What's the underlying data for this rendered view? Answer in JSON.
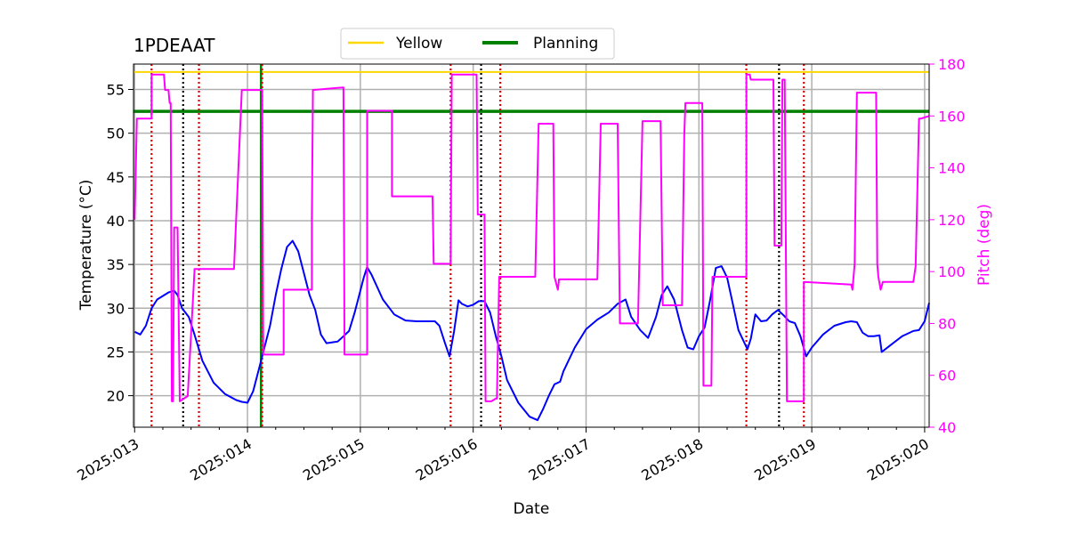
{
  "chart_data": {
    "type": "line",
    "title": "1PDEAAT",
    "xlabel": "Date",
    "ylabel_left": "Temperature ($^\\circ$C)",
    "ylabel_left_display": "Temperature (°C)",
    "ylabel_right": "Pitch (deg)",
    "xlim": [
      12.99,
      20.04
    ],
    "ylim_left": [
      16.4,
      57.9
    ],
    "ylim_right": [
      40,
      180
    ],
    "x_ticks": [
      {
        "value": 13,
        "label": "2025:013"
      },
      {
        "value": 14,
        "label": "2025:014"
      },
      {
        "value": 15,
        "label": "2025:015"
      },
      {
        "value": 16,
        "label": "2025:016"
      },
      {
        "value": 17,
        "label": "2025:017"
      },
      {
        "value": 18,
        "label": "2025:018"
      },
      {
        "value": 19,
        "label": "2025:019"
      },
      {
        "value": 20,
        "label": "2025:020"
      }
    ],
    "y_ticks_left": [
      20,
      25,
      30,
      35,
      40,
      45,
      50,
      55
    ],
    "y_ticks_right": [
      40,
      60,
      80,
      100,
      120,
      140,
      160,
      180
    ],
    "grid": true,
    "legend": {
      "placement": "top-center",
      "entries": [
        {
          "name": "Yellow",
          "color": "#ffd700"
        },
        {
          "name": "Planning",
          "color": "#008000"
        }
      ]
    },
    "colors": {
      "temperature": "#0000ff",
      "pitch": "#ff00ff",
      "yellow": "#ffd700",
      "planning": "#008000",
      "right_axis": "#ff00ff",
      "red_lines": "#dd0000",
      "black_lines": "#000000"
    },
    "hlines": [
      {
        "name": "Yellow",
        "y": 57.0
      },
      {
        "name": "Planning",
        "y": 52.5
      }
    ],
    "red_vlines": [
      13.15,
      13.57,
      14.13,
      15.8,
      16.24,
      18.42,
      18.93
    ],
    "black_vlines": [
      13.43,
      16.07,
      18.71
    ],
    "green_vline": 14.12,
    "series": [
      {
        "name": "Temperature",
        "axis": "left",
        "x": [
          13.0,
          13.05,
          13.1,
          13.15,
          13.2,
          13.3,
          13.35,
          13.38,
          13.42,
          13.48,
          13.53,
          13.6,
          13.7,
          13.8,
          13.9,
          13.95,
          14.0,
          14.05,
          14.1,
          14.15,
          14.2,
          14.25,
          14.3,
          14.35,
          14.4,
          14.45,
          14.5,
          14.55,
          14.6,
          14.65,
          14.7,
          14.8,
          14.85,
          14.9,
          14.95,
          15.0,
          15.03,
          15.06,
          15.1,
          15.2,
          15.3,
          15.4,
          15.5,
          15.6,
          15.66,
          15.7,
          15.75,
          15.79,
          15.83,
          15.87,
          15.9,
          15.95,
          16.0,
          16.05,
          16.1,
          16.15,
          16.2,
          16.25,
          16.3,
          16.4,
          16.5,
          16.57,
          16.62,
          16.67,
          16.72,
          16.77,
          16.8,
          16.9,
          17.0,
          17.1,
          17.2,
          17.28,
          17.35,
          17.4,
          17.48,
          17.55,
          17.62,
          17.67,
          17.72,
          17.78,
          17.85,
          17.9,
          17.95,
          18.0,
          18.05,
          18.1,
          18.15,
          18.2,
          18.25,
          18.3,
          18.35,
          18.43,
          18.46,
          18.5,
          18.55,
          18.6,
          18.65,
          18.7,
          18.75,
          18.8,
          18.85,
          18.9,
          18.95,
          19.0,
          19.1,
          19.2,
          19.3,
          19.35,
          19.4,
          19.45,
          19.5,
          19.55,
          19.6,
          19.62,
          19.7,
          19.8,
          19.9,
          19.95,
          20.0,
          20.04
        ],
        "y": [
          27.3,
          27.0,
          28.0,
          30.0,
          31.0,
          31.8,
          32.0,
          31.5,
          30.0,
          29.0,
          27.0,
          24.0,
          21.5,
          20.2,
          19.5,
          19.3,
          19.2,
          20.5,
          23.0,
          25.5,
          28.0,
          31.5,
          34.5,
          37.0,
          37.7,
          36.5,
          34.0,
          31.5,
          29.8,
          27.0,
          26.0,
          26.2,
          26.8,
          27.4,
          29.5,
          32.0,
          33.5,
          34.7,
          33.8,
          31.0,
          29.3,
          28.6,
          28.5,
          28.5,
          28.5,
          28.0,
          26.0,
          24.5,
          27.3,
          30.9,
          30.5,
          30.2,
          30.4,
          30.8,
          30.8,
          29.5,
          26.8,
          24.5,
          21.8,
          19.2,
          17.6,
          17.2,
          18.5,
          20.0,
          21.3,
          21.6,
          22.8,
          25.5,
          27.6,
          28.7,
          29.5,
          30.5,
          31.0,
          29.0,
          27.5,
          26.6,
          29.0,
          31.5,
          32.5,
          31.0,
          27.5,
          25.5,
          25.3,
          26.8,
          27.8,
          31.0,
          34.6,
          34.8,
          33.5,
          30.5,
          27.5,
          25.3,
          26.5,
          29.3,
          28.5,
          28.6,
          29.3,
          29.8,
          29.2,
          28.5,
          28.3,
          26.8,
          24.5,
          25.5,
          27.0,
          28.0,
          28.4,
          28.5,
          28.4,
          27.2,
          26.8,
          26.8,
          26.9,
          25.0,
          25.8,
          26.8,
          27.4,
          27.5,
          28.5,
          30.6
        ]
      },
      {
        "name": "Pitch",
        "axis": "right",
        "x": [
          13.0,
          13.02,
          13.15,
          13.15,
          13.26,
          13.27,
          13.3,
          13.31,
          13.32,
          13.33,
          13.34,
          13.35,
          13.38,
          13.4,
          13.4,
          13.47,
          13.47,
          13.53,
          13.53,
          13.57,
          13.57,
          13.88,
          13.95,
          14.13,
          14.14,
          14.14,
          14.32,
          14.32,
          14.57,
          14.57,
          14.58,
          14.58,
          14.85,
          14.86,
          15.06,
          15.06,
          15.28,
          15.28,
          15.64,
          15.65,
          15.8,
          15.81,
          16.03,
          16.04,
          16.1,
          16.11,
          16.16,
          16.2,
          16.21,
          16.23,
          16.23,
          16.55,
          16.58,
          16.71,
          16.72,
          16.75,
          16.76,
          16.77,
          17.1,
          17.13,
          17.28,
          17.3,
          17.46,
          17.5,
          17.66,
          17.68,
          17.85,
          17.87,
          17.88,
          18.03,
          18.04,
          18.11,
          18.12,
          18.15,
          18.16,
          18.42,
          18.42,
          18.45,
          18.46,
          18.66,
          18.67,
          18.73,
          18.74,
          18.76,
          18.78,
          18.8,
          18.82,
          18.93,
          18.93,
          19.35,
          19.36,
          19.38,
          19.4,
          19.42,
          19.57,
          19.58,
          19.59,
          19.61,
          19.63,
          19.66,
          19.9,
          19.92,
          19.95,
          19.97,
          20.04
        ],
        "y": [
          120,
          159,
          159,
          176,
          176,
          170,
          170,
          165,
          165,
          50,
          50,
          117,
          117,
          50,
          50,
          52,
          52,
          100,
          101,
          101,
          101,
          101,
          170,
          170,
          68,
          68,
          68,
          93,
          93,
          120,
          170,
          170,
          171,
          68,
          68,
          162,
          162,
          129,
          129,
          103,
          103,
          176,
          176,
          122,
          122,
          50,
          50,
          51,
          51,
          98,
          98,
          98,
          157,
          157,
          98,
          93,
          97,
          97,
          97,
          157,
          157,
          80,
          80,
          158,
          158,
          87,
          87,
          152,
          165,
          165,
          56,
          56,
          98,
          98,
          98,
          98,
          176,
          176,
          174,
          174,
          110,
          110,
          174,
          174,
          50,
          50,
          50,
          50,
          96,
          95,
          93,
          103,
          169,
          169,
          169,
          103,
          98,
          93,
          96,
          96,
          96,
          102,
          159,
          159,
          160
        ]
      }
    ]
  }
}
